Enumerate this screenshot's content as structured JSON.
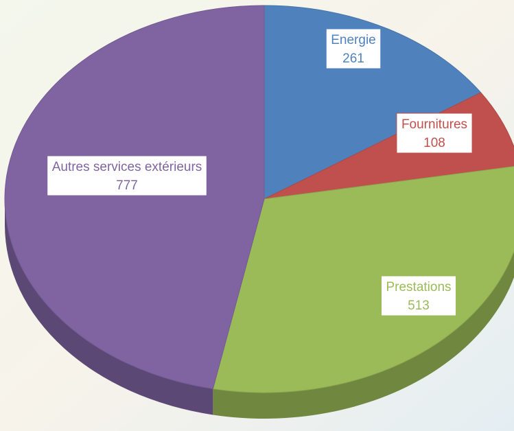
{
  "chart_data": {
    "type": "pie",
    "categories": [
      "Energie",
      "Fournitures",
      "Prestations",
      "Autres services extérieurs"
    ],
    "values": [
      261,
      108,
      513,
      777
    ],
    "colors": [
      "#4f81bd",
      "#c0504d",
      "#9bbb59",
      "#8064a2"
    ]
  }
}
